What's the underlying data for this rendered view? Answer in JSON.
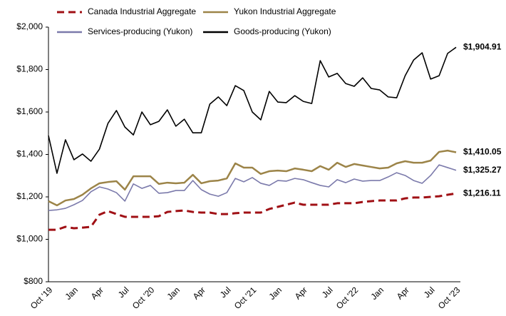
{
  "chart_data": {
    "type": "line",
    "categories": [
      "Oct '19",
      null,
      null,
      "Jan",
      null,
      null,
      "Apr",
      null,
      null,
      "Jul",
      null,
      null,
      "Oct '20",
      null,
      null,
      "Jan",
      null,
      null,
      "Apr",
      null,
      null,
      "Jul",
      null,
      null,
      "Oct '21",
      null,
      null,
      "Jan",
      null,
      null,
      "Apr",
      null,
      null,
      "Jul",
      null,
      null,
      "Oct '22",
      null,
      null,
      "Jan",
      null,
      null,
      "Apr",
      null,
      null,
      "Jul",
      null,
      null,
      "Oct '23"
    ],
    "ylim": [
      800,
      2000
    ],
    "yticks": [
      {
        "value": 800,
        "label": "$800"
      },
      {
        "value": 1000,
        "label": "$1,000"
      },
      {
        "value": 1200,
        "label": "$1,200"
      },
      {
        "value": 1400,
        "label": "$1,400"
      },
      {
        "value": 1600,
        "label": "$1,600"
      },
      {
        "value": 1800,
        "label": "$1,800"
      },
      {
        "value": 2000,
        "label": "$2,000"
      }
    ],
    "grid": false,
    "series": [
      {
        "name": "Canada Industrial Aggregate",
        "color": "#a01015",
        "dashed": true,
        "values": [
          1045,
          1045,
          1059,
          1052,
          1055,
          1059,
          1116,
          1133,
          1119,
          1106,
          1106,
          1106,
          1106,
          1109,
          1129,
          1133,
          1136,
          1129,
          1126,
          1126,
          1119,
          1119,
          1123,
          1126,
          1126,
          1126,
          1143,
          1153,
          1163,
          1173,
          1163,
          1163,
          1163,
          1163,
          1170,
          1170,
          1170,
          1176,
          1180,
          1183,
          1183,
          1183,
          1193,
          1197,
          1197,
          1200,
          1203,
          1210,
          1216.11
        ],
        "value_labels": [
          null,
          null,
          null,
          null,
          null,
          null,
          null,
          null,
          null,
          null,
          null,
          null,
          null,
          null,
          null,
          null,
          null,
          null,
          null,
          null,
          null,
          null,
          null,
          null,
          null,
          null,
          null,
          null,
          null,
          null,
          null,
          null,
          null,
          null,
          null,
          null,
          null,
          null,
          null,
          null,
          null,
          null,
          null,
          null,
          null,
          null,
          null,
          null,
          "$1,216.11"
        ]
      },
      {
        "name": "Yukon Industrial Aggregate",
        "color": "#9c8448",
        "dashed": false,
        "values": [
          1180,
          1160,
          1183,
          1190,
          1210,
          1240,
          1264,
          1270,
          1274,
          1234,
          1297,
          1297,
          1297,
          1261,
          1267,
          1264,
          1267,
          1304,
          1264,
          1274,
          1277,
          1287,
          1358,
          1338,
          1338,
          1308,
          1321,
          1324,
          1321,
          1334,
          1328,
          1321,
          1345,
          1328,
          1361,
          1341,
          1355,
          1348,
          1341,
          1334,
          1338,
          1358,
          1368,
          1361,
          1361,
          1371,
          1412,
          1418,
          1410.05
        ],
        "value_labels": [
          null,
          null,
          null,
          null,
          null,
          null,
          null,
          null,
          null,
          null,
          null,
          null,
          null,
          null,
          null,
          null,
          null,
          null,
          null,
          null,
          null,
          null,
          null,
          null,
          null,
          null,
          null,
          null,
          null,
          null,
          null,
          null,
          null,
          null,
          null,
          null,
          null,
          null,
          null,
          null,
          null,
          null,
          null,
          null,
          null,
          null,
          null,
          null,
          "$1,410.05"
        ]
      },
      {
        "name": "Services-producing (Yukon)",
        "color": "#7b7aab",
        "dashed": false,
        "values": [
          1136,
          1139,
          1146,
          1163,
          1183,
          1224,
          1247,
          1237,
          1220,
          1180,
          1261,
          1240,
          1254,
          1217,
          1220,
          1230,
          1230,
          1277,
          1234,
          1213,
          1203,
          1220,
          1287,
          1271,
          1291,
          1264,
          1254,
          1277,
          1274,
          1287,
          1281,
          1267,
          1254,
          1247,
          1281,
          1267,
          1284,
          1274,
          1277,
          1277,
          1294,
          1314,
          1301,
          1277,
          1264,
          1301,
          1351,
          1338,
          1325.27
        ],
        "value_labels": [
          null,
          null,
          null,
          null,
          null,
          null,
          null,
          null,
          null,
          null,
          null,
          null,
          null,
          null,
          null,
          null,
          null,
          null,
          null,
          null,
          null,
          null,
          null,
          null,
          null,
          null,
          null,
          null,
          null,
          null,
          null,
          null,
          null,
          null,
          null,
          null,
          null,
          null,
          null,
          null,
          null,
          null,
          null,
          null,
          null,
          null,
          null,
          null,
          "$1,325.27"
        ]
      },
      {
        "name": "Goods-producing (Yukon)",
        "color": "#000000",
        "dashed": false,
        "values": [
          1489,
          1311,
          1469,
          1375,
          1402,
          1368,
          1425,
          1546,
          1607,
          1529,
          1492,
          1600,
          1540,
          1556,
          1610,
          1533,
          1566,
          1502,
          1502,
          1637,
          1671,
          1630,
          1724,
          1701,
          1600,
          1563,
          1697,
          1647,
          1644,
          1677,
          1650,
          1640,
          1842,
          1765,
          1782,
          1734,
          1721,
          1761,
          1711,
          1704,
          1671,
          1667,
          1771,
          1845,
          1879,
          1755,
          1771,
          1876,
          1904.91
        ],
        "value_labels": [
          null,
          null,
          null,
          null,
          null,
          null,
          null,
          null,
          null,
          null,
          null,
          null,
          null,
          null,
          null,
          null,
          null,
          null,
          null,
          null,
          null,
          null,
          null,
          null,
          null,
          null,
          null,
          null,
          null,
          null,
          null,
          null,
          null,
          null,
          null,
          null,
          null,
          null,
          null,
          null,
          null,
          null,
          null,
          null,
          null,
          null,
          null,
          null,
          "$1,904.91"
        ]
      }
    ]
  }
}
